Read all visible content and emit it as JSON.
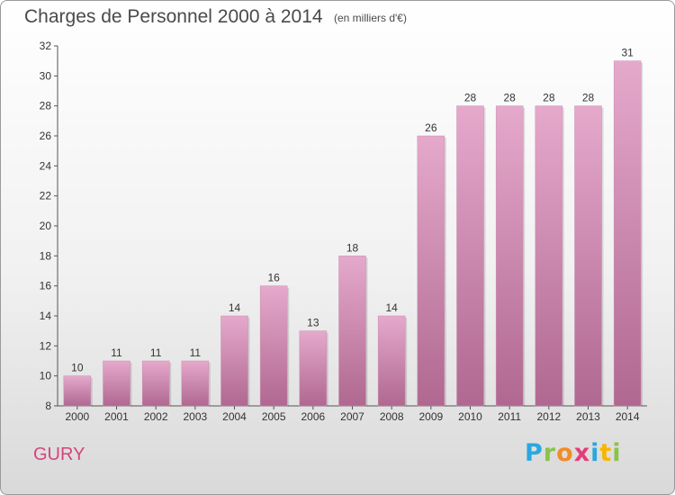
{
  "header": {
    "title": "Charges de Personnel 2000 à 2014",
    "subtitle": "(en milliers d'€)"
  },
  "footer": {
    "commune": "GURY",
    "logo_text": "Proxiti",
    "logo_colors": [
      "#2aa7df",
      "#8bc34a",
      "#f28c28",
      "#e63b7a",
      "#2aa7df",
      "#f7b500",
      "#8bc34a"
    ]
  },
  "colors": {
    "bar_top": "#e5a9cc",
    "bar_bottom": "#b06890",
    "accent": "#d6457a"
  },
  "chart_data": {
    "type": "bar",
    "title": "Charges de Personnel 2000 à 2014",
    "subtitle": "(en milliers d'€)",
    "categories": [
      "2000",
      "2001",
      "2002",
      "2003",
      "2004",
      "2005",
      "2006",
      "2007",
      "2008",
      "2009",
      "2010",
      "2011",
      "2012",
      "2013",
      "2014"
    ],
    "values": [
      10,
      11,
      11,
      11,
      14,
      16,
      13,
      18,
      14,
      26,
      28,
      28,
      28,
      28,
      31
    ],
    "ylim": [
      8,
      32
    ],
    "yticks": [
      8,
      10,
      12,
      14,
      16,
      18,
      20,
      22,
      24,
      26,
      28,
      30,
      32
    ],
    "grid": false,
    "legend": "none"
  }
}
